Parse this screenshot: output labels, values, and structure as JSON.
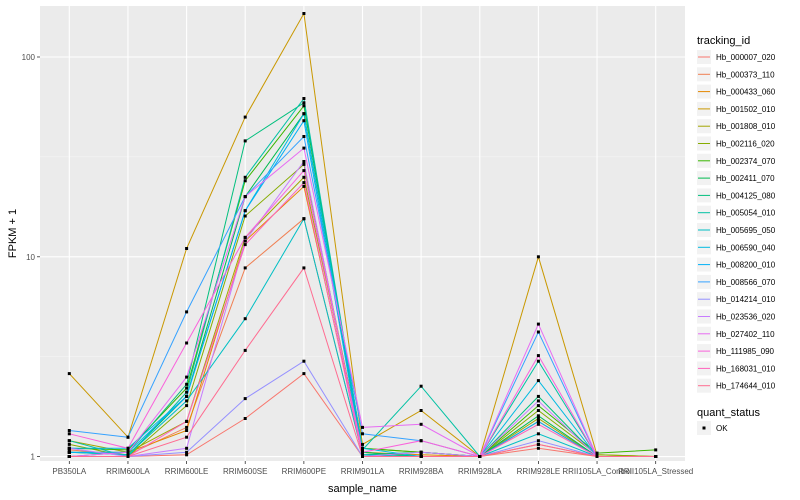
{
  "chart_data": {
    "type": "line",
    "title": "",
    "xlabel": "sample_name",
    "ylabel": "FPKM + 1",
    "y_scale": "log10",
    "ylim": [
      0.95,
      180
    ],
    "y_ticks": [
      1,
      10,
      100
    ],
    "y_tick_labels": [
      "1",
      "10",
      "100"
    ],
    "grid": true,
    "panel_background": "#ebebeb",
    "categories": [
      "PB350LA",
      "RRIM600LA",
      "RRIM600LE",
      "RRIM600SE",
      "RRIM600PE",
      "RRIM901LA",
      "RRIM928BA",
      "RRIM928LA",
      "RRIM928LE",
      "RRII105LA_Control",
      "RRII105LA_Stressed"
    ],
    "legend": {
      "position": "right",
      "tracking_title": "tracking_id",
      "status_title": "quant_status",
      "status_label": "OK"
    },
    "series": [
      {
        "name": "Hb_000007_020",
        "color": "#F8766D",
        "values": [
          1.0,
          1.0,
          1.02,
          1.55,
          2.6,
          1.0,
          1.0,
          1.0,
          1.1,
          1.0,
          1.0
        ]
      },
      {
        "name": "Hb_000373_110",
        "color": "#F07F52",
        "values": [
          1.08,
          1.02,
          1.4,
          8.8,
          15.5,
          1.02,
          1.0,
          1.0,
          1.15,
          1.0,
          1.0
        ]
      },
      {
        "name": "Hb_000433_060",
        "color": "#E58700",
        "values": [
          1.05,
          1.05,
          1.35,
          12.0,
          22.5,
          1.05,
          1.02,
          1.0,
          1.5,
          1.0,
          1.0
        ]
      },
      {
        "name": "Hb_001502_010",
        "color": "#C99800",
        "values": [
          2.6,
          1.25,
          11.0,
          50.0,
          165.0,
          1.15,
          1.7,
          1.0,
          10.0,
          1.02,
          1.0
        ]
      },
      {
        "name": "Hb_001808_010",
        "color": "#A3A500",
        "values": [
          1.2,
          1.05,
          1.5,
          12.5,
          25.0,
          1.1,
          1.05,
          1.0,
          1.55,
          1.0,
          1.0
        ]
      },
      {
        "name": "Hb_002116_020",
        "color": "#86AC00",
        "values": [
          1.15,
          1.0,
          1.8,
          16.0,
          29.0,
          1.05,
          1.0,
          1.0,
          1.7,
          1.02,
          1.0
        ]
      },
      {
        "name": "Hb_002374_070",
        "color": "#39B600",
        "values": [
          1.1,
          1.08,
          2.2,
          24.0,
          57.0,
          1.1,
          1.05,
          1.0,
          1.8,
          1.04,
          1.08
        ]
      },
      {
        "name": "Hb_002411_070",
        "color": "#00BB4E",
        "values": [
          1.05,
          1.02,
          2.0,
          20.0,
          52.0,
          1.05,
          1.0,
          1.0,
          1.6,
          1.0,
          1.0
        ]
      },
      {
        "name": "Hb_004125_080",
        "color": "#00BF7D",
        "values": [
          1.0,
          1.05,
          2.3,
          38.0,
          59.0,
          1.02,
          1.05,
          1.0,
          2.0,
          1.0,
          1.0
        ]
      },
      {
        "name": "Hb_005054_010",
        "color": "#00C1A3",
        "values": [
          1.2,
          1.0,
          2.1,
          25.0,
          62.0,
          1.08,
          2.25,
          1.0,
          3.0,
          1.0,
          1.0
        ]
      },
      {
        "name": "Hb_005695_050",
        "color": "#00BFC4",
        "values": [
          1.05,
          1.02,
          1.9,
          4.9,
          15.5,
          1.02,
          1.0,
          1.0,
          1.3,
          1.0,
          1.0
        ]
      },
      {
        "name": "Hb_006590_040",
        "color": "#00BAE0",
        "values": [
          1.1,
          1.1,
          2.0,
          17.0,
          52.0,
          1.1,
          1.0,
          1.0,
          2.4,
          1.0,
          1.0
        ]
      },
      {
        "name": "Hb_008200_010",
        "color": "#00B0F6",
        "values": [
          1.05,
          1.05,
          2.0,
          17.0,
          48.0,
          1.0,
          1.0,
          1.0,
          1.5,
          1.0,
          1.0
        ]
      },
      {
        "name": "Hb_008566_070",
        "color": "#35A2FF",
        "values": [
          1.35,
          1.25,
          5.3,
          20.0,
          40.0,
          1.3,
          1.2,
          1.0,
          4.2,
          1.0,
          1.0
        ]
      },
      {
        "name": "Hb_014214_010",
        "color": "#9590FF",
        "values": [
          1.0,
          1.0,
          1.05,
          1.95,
          3.0,
          1.0,
          1.0,
          1.0,
          1.2,
          1.0,
          1.0
        ]
      },
      {
        "name": "Hb_023536_020",
        "color": "#C77CFF",
        "values": [
          1.1,
          1.0,
          1.1,
          12.0,
          30.0,
          1.0,
          1.05,
          1.0,
          1.9,
          1.0,
          1.0
        ]
      },
      {
        "name": "Hb_027402_110",
        "color": "#E76BF3",
        "values": [
          1.0,
          1.05,
          2.5,
          20.0,
          35.0,
          1.4,
          1.45,
          1.0,
          4.6,
          1.0,
          1.0
        ]
      },
      {
        "name": "Hb_111985_090",
        "color": "#FA62DB",
        "values": [
          1.3,
          1.1,
          3.7,
          12.5,
          27.0,
          1.05,
          1.2,
          1.0,
          3.2,
          1.0,
          1.0
        ]
      },
      {
        "name": "Hb_168031_010",
        "color": "#FF62BC",
        "values": [
          1.0,
          1.0,
          1.5,
          11.5,
          23.5,
          1.0,
          1.0,
          1.0,
          1.45,
          1.0,
          1.0
        ]
      },
      {
        "name": "Hb_174644_010",
        "color": "#FF6C91",
        "values": [
          1.0,
          1.0,
          1.25,
          3.4,
          8.8,
          1.0,
          1.0,
          1.0,
          1.15,
          1.0,
          1.0
        ]
      }
    ]
  }
}
